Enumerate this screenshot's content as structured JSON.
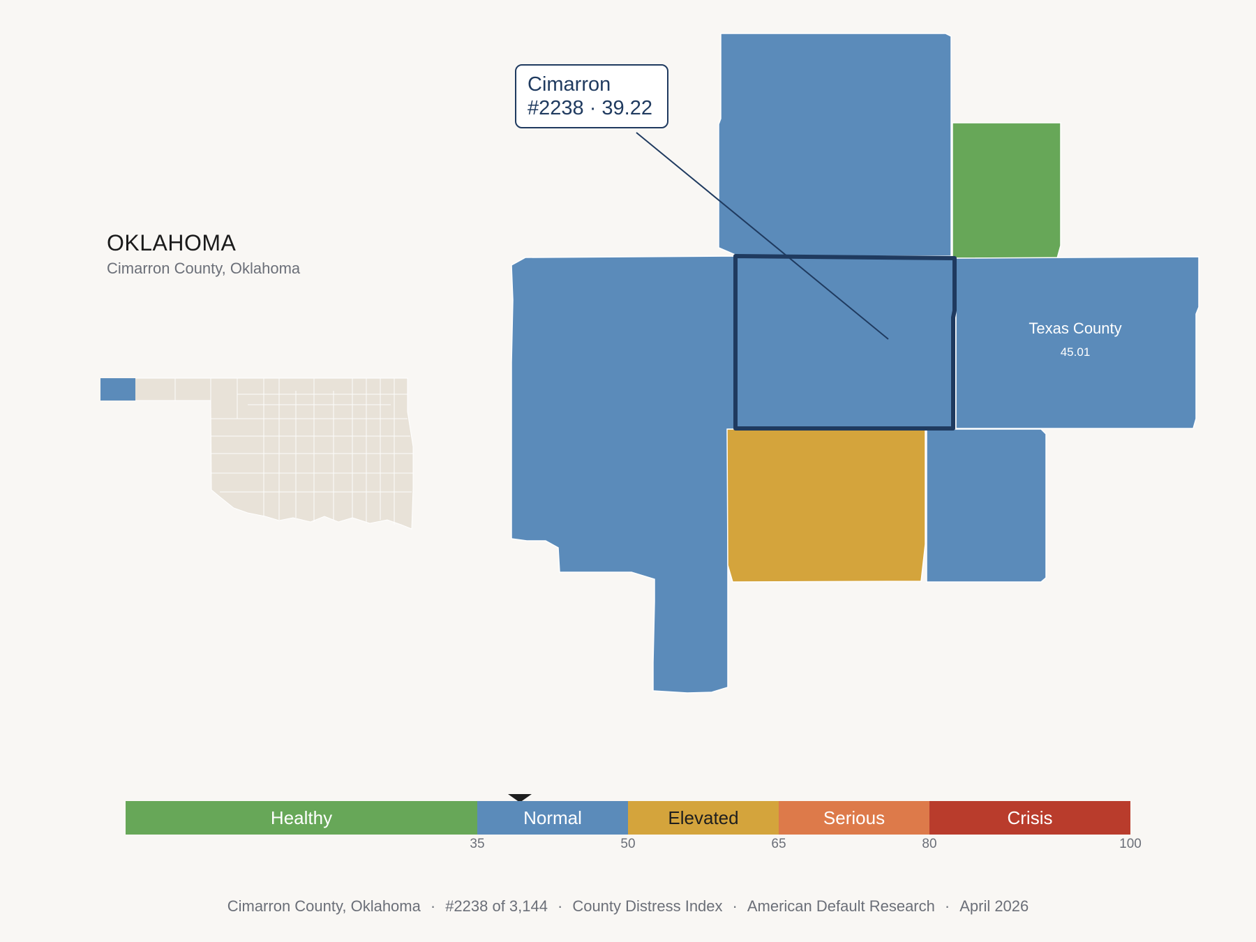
{
  "state": {
    "title": "OKLAHOMA",
    "subtitle": "Cimarron County, Oklahoma"
  },
  "selected_county": {
    "name": "Cimarron",
    "rank_value": "#2238 · 39.22",
    "rank": 2238,
    "score": 39.22,
    "category": "Normal"
  },
  "neighbor_label": {
    "name": "Texas County",
    "value": "45.01"
  },
  "legend": {
    "segments": [
      {
        "label": "Healthy",
        "color": "#67a758",
        "from": 0,
        "to": 35
      },
      {
        "label": "Normal",
        "color": "#5b8bba",
        "from": 35,
        "to": 50
      },
      {
        "label": "Elevated",
        "color": "#d4a43c",
        "from": 50,
        "to": 65
      },
      {
        "label": "Serious",
        "color": "#dd7a4a",
        "from": 65,
        "to": 80
      },
      {
        "label": "Crisis",
        "color": "#b93c2c",
        "from": 80,
        "to": 100
      }
    ],
    "ticks": [
      "35",
      "50",
      "65",
      "80",
      "100"
    ],
    "marker_value": 39.22
  },
  "colors": {
    "normal": "#5b8bba",
    "healthy": "#67a758",
    "elevated": "#d4a43c",
    "highlight_border": "#1f3a5f",
    "state_fill": "#e8e2d8",
    "background": "#f9f7f4"
  },
  "footer": {
    "county": "Cimarron County, Oklahoma",
    "rank": "#2238 of 3,144",
    "index": "County Distress Index",
    "source": "American Default Research",
    "date": "April 2026",
    "separator": "·"
  }
}
